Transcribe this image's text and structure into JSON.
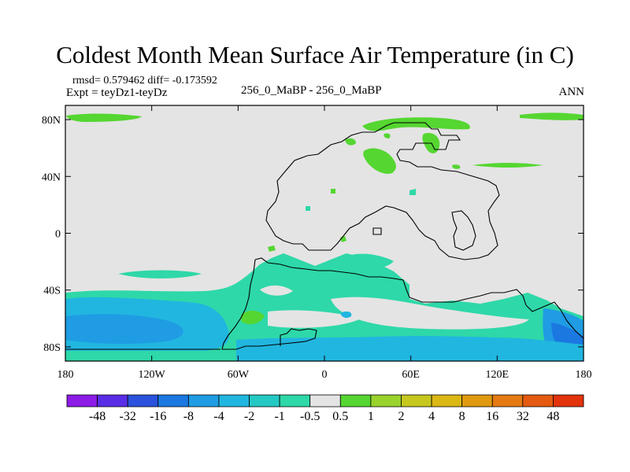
{
  "chart_data": {
    "type": "contour-map",
    "title": "Coldest Month Mean Surface Air Temperature (in C)",
    "stats": "rmsd= 0.579462 diff= -0.173592",
    "experiment": "Expt = teyDz1-teyDz",
    "case": "256_0_MaBP - 256_0_MaBP",
    "season": "ANN",
    "xlim": [
      -180,
      180
    ],
    "ylim": [
      -90,
      90
    ],
    "x_ticks": [
      {
        "value": -180,
        "label": "180"
      },
      {
        "value": -120,
        "label": "120W"
      },
      {
        "value": -60,
        "label": "60W"
      },
      {
        "value": 0,
        "label": "0"
      },
      {
        "value": 60,
        "label": "60E"
      },
      {
        "value": 120,
        "label": "120E"
      },
      {
        "value": 180,
        "label": "180"
      }
    ],
    "y_ticks": [
      {
        "value": 80,
        "label": "80N"
      },
      {
        "value": 40,
        "label": "40N"
      },
      {
        "value": 0,
        "label": "0"
      },
      {
        "value": -40,
        "label": "40S"
      },
      {
        "value": -80,
        "label": "80S"
      }
    ],
    "colorbar": {
      "levels": [
        "-48",
        "-32",
        "-16",
        "-8",
        "-4",
        "-2",
        "-1",
        "-0.5",
        "0.5",
        "1",
        "2",
        "4",
        "8",
        "16",
        "32",
        "48"
      ],
      "colors": [
        "#8c1ce6",
        "#5a2de6",
        "#2a52dc",
        "#1a78e0",
        "#1f9ce3",
        "#21b6df",
        "#25c9c4",
        "#2ed8a8",
        "#e4e4e4",
        "#55d631",
        "#9ad22e",
        "#c6c81f",
        "#dcb815",
        "#e09a10",
        "#e57a12",
        "#e45a10",
        "#e2330c"
      ]
    },
    "colors": {
      "background_field": "#e4e4e4",
      "coastline": "#000000"
    }
  }
}
